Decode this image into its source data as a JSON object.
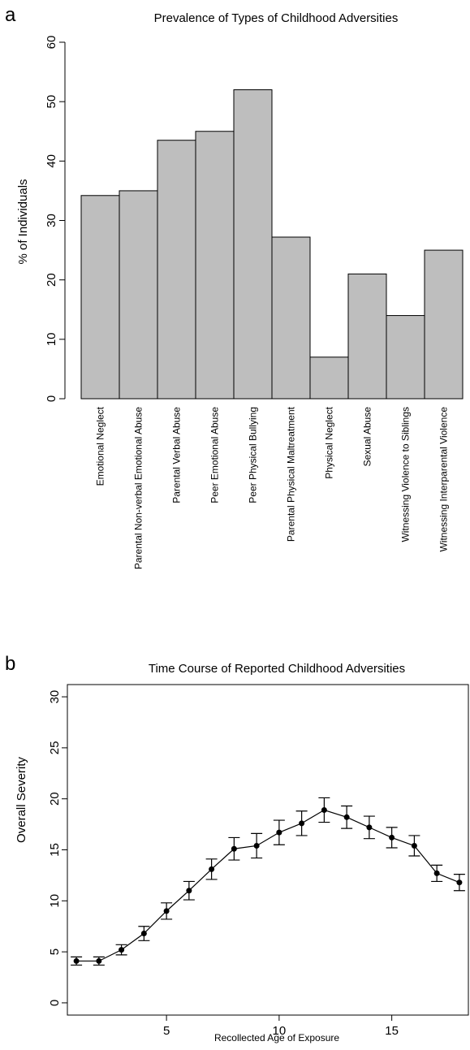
{
  "panels": {
    "a_letter": "a",
    "b_letter": "b"
  },
  "chart_data": [
    {
      "type": "bar",
      "title": "Prevalence of Types of Childhood Adversities",
      "xlabel": "",
      "ylabel": "% of Individuals",
      "ylim": [
        0,
        60
      ],
      "yticks": [
        0,
        10,
        20,
        30,
        40,
        50,
        60
      ],
      "categories": [
        "Emotional Neglect",
        "Parental Non-verbal Emotional Abuse",
        "Parental Verbal Abuse",
        "Peer Emotional Abuse",
        "Peer Physical Bullying",
        "Parental Physical Maltreatment",
        "Physical Neglect",
        "Sexual Abuse",
        "Witnessing Violence to Siblings",
        "Witnessing Interparental Violence"
      ],
      "values": [
        34.2,
        35.0,
        43.5,
        45.0,
        52.0,
        27.2,
        7.0,
        21.0,
        14.0,
        25.0
      ],
      "bar_color": "#bebebe",
      "grid": false
    },
    {
      "type": "line",
      "title": "Time Course of Reported Childhood Adversities",
      "xlabel": "Recollected Age of Exposure",
      "ylabel": "Overall Severity",
      "xlim": [
        0.6,
        18.4
      ],
      "ylim": [
        -1.2,
        31.2
      ],
      "xticks": [
        5,
        10,
        15
      ],
      "yticks": [
        0,
        5,
        10,
        15,
        20,
        25,
        30
      ],
      "x": [
        1,
        2,
        3,
        4,
        5,
        6,
        7,
        8,
        9,
        10,
        11,
        12,
        13,
        14,
        15,
        16,
        17,
        18
      ],
      "y": [
        4.1,
        4.1,
        5.2,
        6.8,
        9.0,
        11.0,
        13.1,
        15.1,
        15.4,
        16.7,
        17.6,
        18.9,
        18.2,
        17.2,
        16.2,
        15.4,
        12.7,
        11.8
      ],
      "error_bars": [
        0.4,
        0.4,
        0.5,
        0.7,
        0.8,
        0.9,
        1.0,
        1.1,
        1.2,
        1.2,
        1.2,
        1.2,
        1.1,
        1.1,
        1.0,
        1.0,
        0.8,
        0.8
      ],
      "grid": false
    }
  ]
}
